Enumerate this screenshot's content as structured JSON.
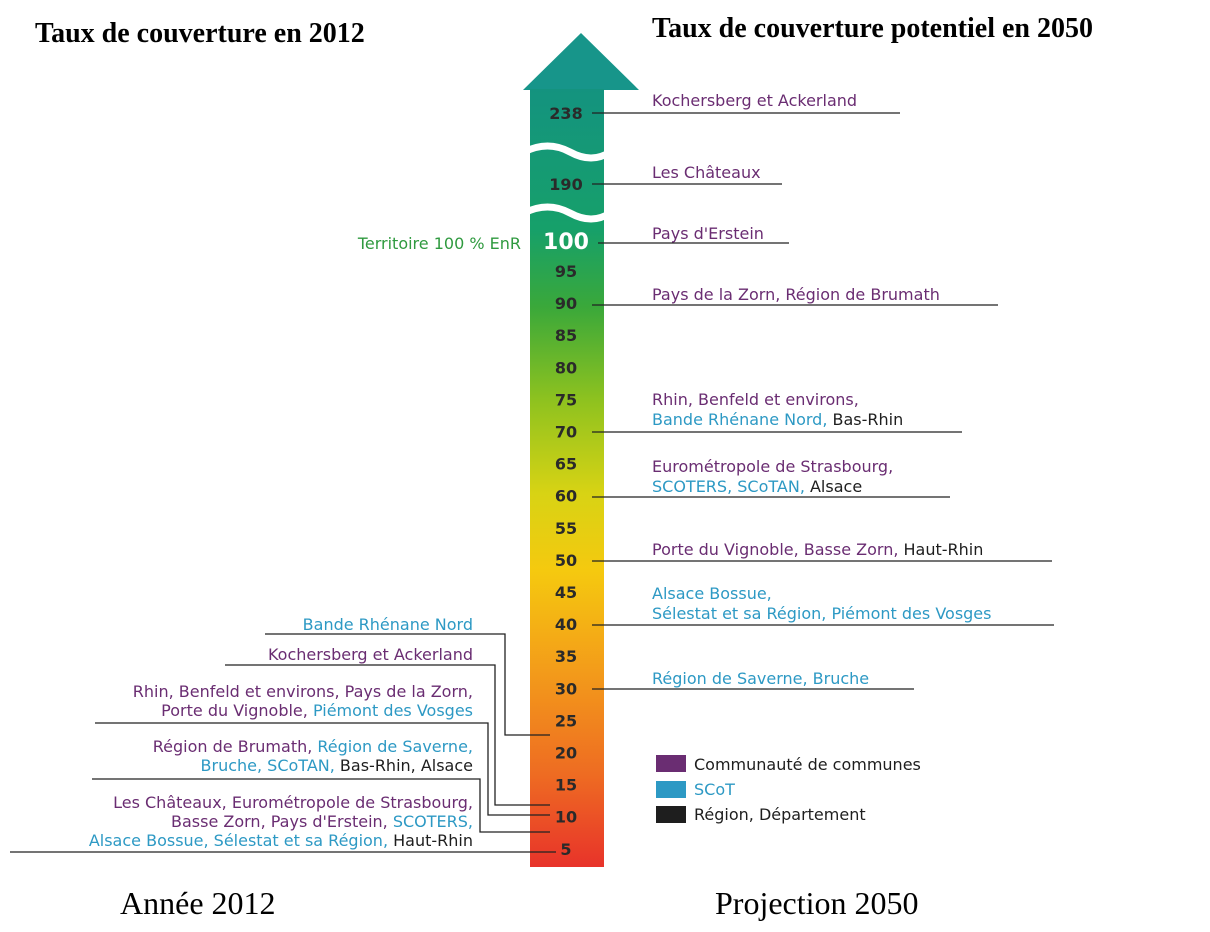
{
  "titles": {
    "left": "Taux de couverture en 2012",
    "right": "Taux de couverture potentiel en 2050",
    "footer_left": "Année 2012",
    "footer_right": "Projection 2050"
  },
  "colors": {
    "commune": "#6a2d72",
    "scot": "#2d99c4",
    "region": "#1e1e1e",
    "green_label": "#2f9a3f",
    "arrow_teal": "#17958a"
  },
  "scale": {
    "top_values": [
      "238",
      "190"
    ],
    "hundred": "100",
    "ticks": [
      "95",
      "90",
      "85",
      "80",
      "75",
      "70",
      "65",
      "60",
      "55",
      "50",
      "45",
      "40",
      "35",
      "30",
      "25",
      "20",
      "15",
      "10",
      "5"
    ],
    "marker_label": "Territoire 100 % EnR"
  },
  "right_labels": {
    "r238": [
      {
        "t": "Kochersberg et Ackerland",
        "c": "commune"
      }
    ],
    "r190": [
      {
        "t": "Les Châteaux",
        "c": "commune"
      }
    ],
    "r100": [
      {
        "t": "Pays d'Erstein",
        "c": "commune"
      }
    ],
    "r90": [
      {
        "t": "Pays de la Zorn, Région de Brumath",
        "c": "commune"
      }
    ],
    "r70_l1": [
      {
        "t": "Rhin, Benfeld et environs,",
        "c": "commune"
      }
    ],
    "r70_l2": [
      {
        "t": "Bande Rhénane Nord, ",
        "c": "scot"
      },
      {
        "t": "Bas-Rhin",
        "c": "region"
      }
    ],
    "r60_l1": [
      {
        "t": "Eurométropole de Strasbourg,",
        "c": "commune"
      }
    ],
    "r60_l2": [
      {
        "t": "SCOTERS, SCoTAN, ",
        "c": "scot"
      },
      {
        "t": "Alsace",
        "c": "region"
      }
    ],
    "r50": [
      {
        "t": "Porte du Vignoble, Basse Zorn, ",
        "c": "commune"
      },
      {
        "t": "Haut-Rhin",
        "c": "region"
      }
    ],
    "r40_l1": [
      {
        "t": "Alsace Bossue,",
        "c": "scot"
      }
    ],
    "r40_l2": [
      {
        "t": "Sélestat et sa Région, Piémont des Vosges",
        "c": "scot"
      }
    ],
    "r30": [
      {
        "t": "Région de Saverne, Bruche",
        "c": "scot"
      }
    ]
  },
  "left_labels": {
    "l22": [
      {
        "t": "Bande Rhénane Nord",
        "c": "scot"
      }
    ],
    "l12": [
      {
        "t": "Kochersberg et Ackerland",
        "c": "commune"
      }
    ],
    "l10_l1": [
      {
        "t": "Rhin, Benfeld et environs, Pays de la Zorn,",
        "c": "commune"
      }
    ],
    "l10_l2": [
      {
        "t": "Porte du Vignoble, ",
        "c": "commune"
      },
      {
        "t": "Piémont des Vosges",
        "c": "scot"
      }
    ],
    "l8_l1": [
      {
        "t": "Région de Brumath, ",
        "c": "commune"
      },
      {
        "t": "Région de Saverne,",
        "c": "scot"
      }
    ],
    "l8_l2": [
      {
        "t": "Bruche, SCoTAN, ",
        "c": "scot"
      },
      {
        "t": "Bas-Rhin, Alsace",
        "c": "region"
      }
    ],
    "l5_l1": [
      {
        "t": "Les Châteaux, Eurométropole de Strasbourg,",
        "c": "commune"
      }
    ],
    "l5_l2": [
      {
        "t": "Basse Zorn, Pays d'Erstein, ",
        "c": "commune"
      },
      {
        "t": "SCOTERS,",
        "c": "scot"
      }
    ],
    "l5_l3": [
      {
        "t": "Alsace Bossue, Sélestat et sa Région, ",
        "c": "scot"
      },
      {
        "t": "Haut-Rhin",
        "c": "region"
      }
    ]
  },
  "legend": [
    {
      "label": "Communauté de communes",
      "color": "#6a2d72"
    },
    {
      "label": "SCoT",
      "color": "#2d99c4"
    },
    {
      "label": "Région, Département",
      "color": "#1e1e1e"
    }
  ]
}
